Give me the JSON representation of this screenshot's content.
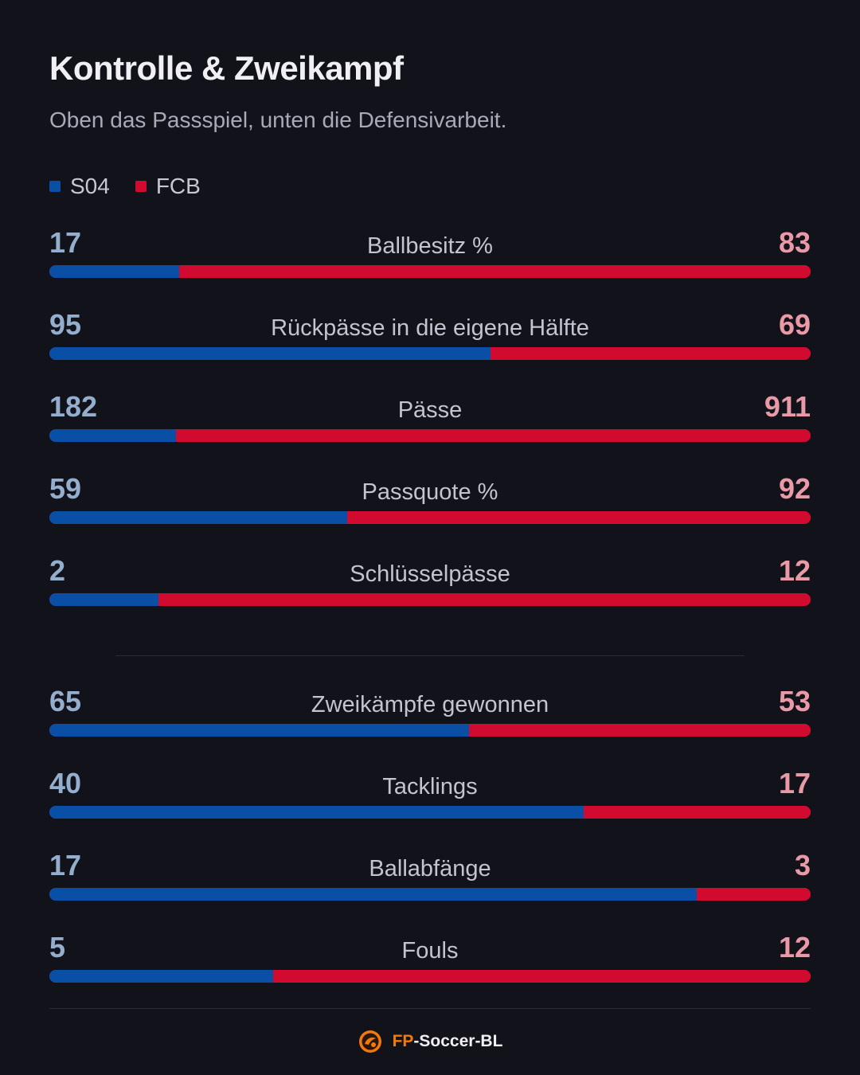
{
  "title": "Kontrolle & Zweikampf",
  "subtitle": "Oben das Passspiel, unten die Defensivarbeit.",
  "legend": [
    {
      "label": "S04",
      "color": "#0a4fa6"
    },
    {
      "label": "FCB",
      "color": "#d10a30"
    }
  ],
  "colors": {
    "home": "#0a4fa6",
    "away": "#d10a30",
    "home_value": "#94aecd",
    "away_value": "#e99aa6"
  },
  "chart_data": {
    "type": "bar",
    "orientation": "horizontal-stacked-share",
    "series": [
      {
        "name": "S04",
        "values": [
          17,
          95,
          182,
          59,
          2,
          65,
          40,
          17,
          5
        ]
      },
      {
        "name": "FCB",
        "values": [
          83,
          69,
          911,
          92,
          12,
          53,
          17,
          3,
          12
        ]
      }
    ],
    "categories": [
      "Ballbesitz %",
      "Rückpässe in die eigene Hälfte",
      "Pässe",
      "Passquote %",
      "Schlüsselpässe",
      "Zweikämpfe gewonnen",
      "Tacklings",
      "Ballabfänge",
      "Fouls"
    ],
    "groups": [
      {
        "indices": [
          0,
          1,
          2,
          3,
          4
        ]
      },
      {
        "indices": [
          5,
          6,
          7,
          8
        ]
      }
    ],
    "legend_position": "top-left"
  },
  "footer": {
    "brand_prefix": "FP",
    "brand_suffix": "-Soccer-BL",
    "logo_icon": "soccer-ball-logo-icon"
  }
}
